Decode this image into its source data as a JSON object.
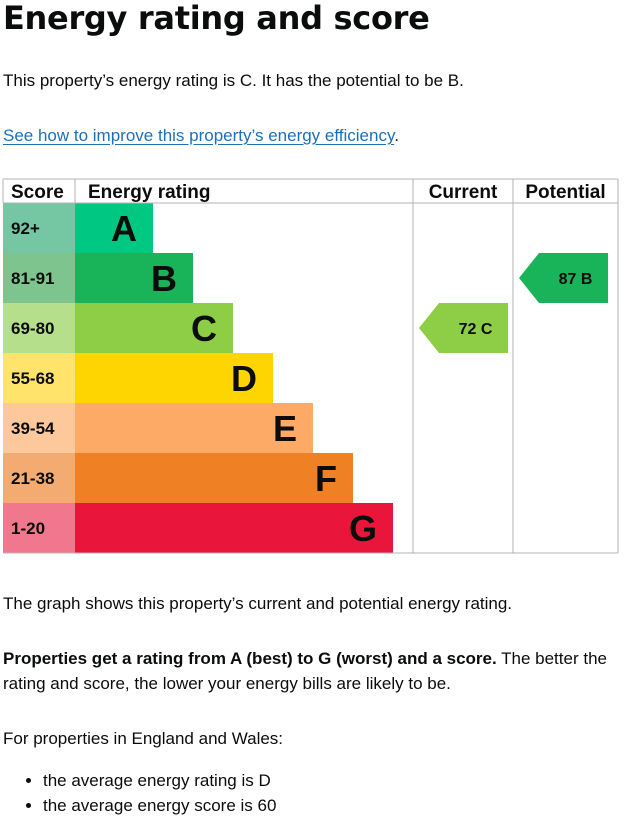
{
  "heading": "Energy rating and score",
  "intro": "This property’s energy rating is C. It has the potential to be B.",
  "improve_link": "See how to improve this property’s energy efficiency",
  "improve_link_suffix": ".",
  "graph_text": "The graph shows this property’s current and potential energy rating.",
  "rating_text_bold": "Properties get a rating from A (best) to G (worst) and a score.",
  "rating_text_rest": " The better the rating and score, the lower your energy bills are likely to be.",
  "regions_text": "For properties in England and Wales:",
  "averages": [
    "the average energy rating is D",
    "the average energy score is 60"
  ],
  "chart_data": {
    "type": "table",
    "headers": {
      "score": "Score",
      "rating": "Energy rating",
      "current": "Current",
      "potential": "Potential"
    },
    "bands": [
      {
        "letter": "A",
        "range": "92+",
        "color": "#00c781",
        "score_color": "#75c7a3"
      },
      {
        "letter": "B",
        "range": "81-91",
        "color": "#19b459",
        "score_color": "#7ec48f"
      },
      {
        "letter": "C",
        "range": "69-80",
        "color": "#8dce46",
        "score_color": "#b5df8a"
      },
      {
        "letter": "D",
        "range": "55-68",
        "color": "#ffd500",
        "score_color": "#ffe36b"
      },
      {
        "letter": "E",
        "range": "39-54",
        "color": "#fcaa65",
        "score_color": "#fcc89c"
      },
      {
        "letter": "F",
        "range": "21-38",
        "color": "#ef8023",
        "score_color": "#f4ab72"
      },
      {
        "letter": "G",
        "range": "1-20",
        "color": "#e9153b",
        "score_color": "#f0778d"
      }
    ],
    "current": {
      "score": 72,
      "band": "C",
      "label": "72 C",
      "color": "#8dce46"
    },
    "potential": {
      "score": 87,
      "band": "B",
      "label": "87 B",
      "color": "#19b459"
    }
  }
}
